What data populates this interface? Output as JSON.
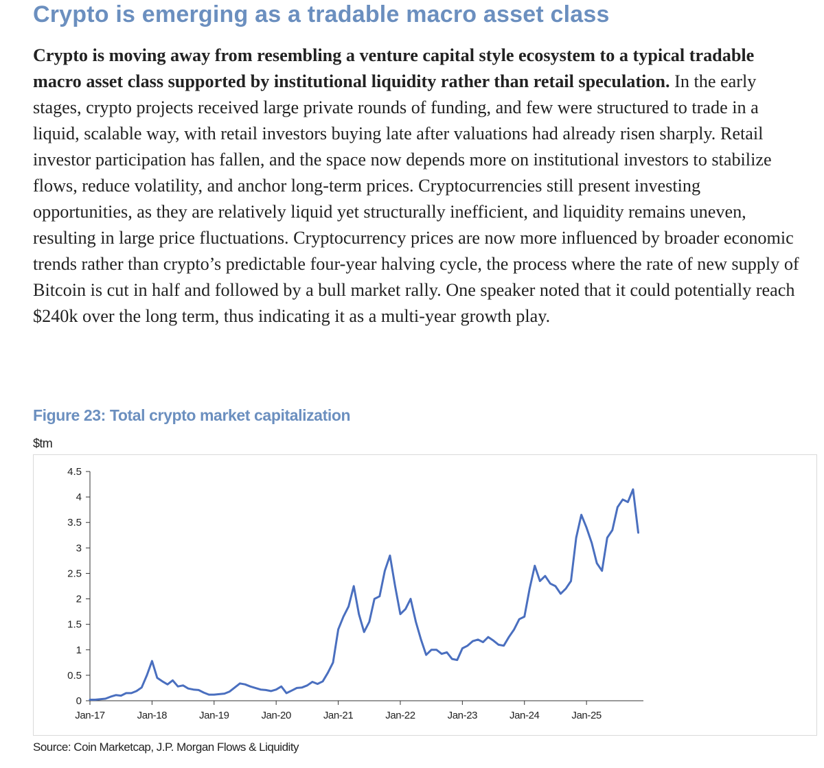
{
  "headline": "Crypto is emerging as a tradable macro asset class",
  "paragraph": {
    "lede": "Crypto is moving away from resembling a venture capital style ecosystem to a typical tradable macro asset class supported by institutional liquidity rather than retail speculation.",
    "body": " In the early stages, crypto projects received large private rounds of funding, and few were structured to trade in a liquid, scalable way, with retail investors buying late after valuations had already risen sharply. Retail investor participation has fallen, and the space now depends more on institutional investors to stabilize flows, reduce volatility, and anchor long-term prices. Cryptocurrencies still present investing opportunities, as they are relatively liquid yet structurally inefficient, and liquidity remains uneven, resulting in large price fluctuations. Cryptocurrency prices are now more influenced by broader economic trends rather than crypto’s predictable four-year halving cycle, the process where the rate of new supply of Bitcoin is cut in half and followed by a bull market rally. One speaker noted that it could potentially reach $240k over the long term, thus indicating it as a multi-year growth play."
  },
  "figure": {
    "title": "Figure 23: Total crypto market capitalization",
    "unit": "$tm",
    "source": "Source: Coin Marketcap, J.P. Morgan Flows & Liquidity"
  },
  "chart_data": {
    "type": "line",
    "title": "Figure 23: Total crypto market capitalization",
    "ylabel": "$tm",
    "xlabel": "",
    "ylim": [
      0,
      4.5
    ],
    "yticks": [
      0,
      0.5,
      1,
      1.5,
      2,
      2.5,
      3,
      3.5,
      4,
      4.5
    ],
    "ytick_labels": [
      "0",
      "0.5",
      "1",
      "1.5",
      "2",
      "2.5",
      "3",
      "3.5",
      "4",
      "4.5"
    ],
    "xlim": [
      "2017-01",
      "2025-12"
    ],
    "xtick_labels": [
      "Jan-17",
      "Jan-18",
      "Jan-19",
      "Jan-20",
      "Jan-21",
      "Jan-22",
      "Jan-23",
      "Jan-24",
      "Jan-25"
    ],
    "grid": false,
    "legend": "none",
    "line_color": "#4a6fbf",
    "series": [
      {
        "x": [
          "2017-01",
          "2017-02",
          "2017-03",
          "2017-04",
          "2017-05",
          "2017-06",
          "2017-07",
          "2017-08",
          "2017-09",
          "2017-10",
          "2017-11",
          "2017-12",
          "2018-01",
          "2018-02",
          "2018-03",
          "2018-04",
          "2018-05",
          "2018-06",
          "2018-07",
          "2018-08",
          "2018-09",
          "2018-10",
          "2018-11",
          "2018-12",
          "2019-01",
          "2019-02",
          "2019-03",
          "2019-04",
          "2019-05",
          "2019-06",
          "2019-07",
          "2019-08",
          "2019-09",
          "2019-10",
          "2019-11",
          "2019-12",
          "2020-01",
          "2020-02",
          "2020-03",
          "2020-04",
          "2020-05",
          "2020-06",
          "2020-07",
          "2020-08",
          "2020-09",
          "2020-10",
          "2020-11",
          "2020-12",
          "2021-01",
          "2021-02",
          "2021-03",
          "2021-04",
          "2021-05",
          "2021-06",
          "2021-07",
          "2021-08",
          "2021-09",
          "2021-10",
          "2021-11",
          "2021-12",
          "2022-01",
          "2022-02",
          "2022-03",
          "2022-04",
          "2022-05",
          "2022-06",
          "2022-07",
          "2022-08",
          "2022-09",
          "2022-10",
          "2022-11",
          "2022-12",
          "2023-01",
          "2023-02",
          "2023-03",
          "2023-04",
          "2023-05",
          "2023-06",
          "2023-07",
          "2023-08",
          "2023-09",
          "2023-10",
          "2023-11",
          "2023-12",
          "2024-01",
          "2024-02",
          "2024-03",
          "2024-04",
          "2024-05",
          "2024-06",
          "2024-07",
          "2024-08",
          "2024-09",
          "2024-10",
          "2024-11",
          "2024-12",
          "2025-01",
          "2025-02",
          "2025-03",
          "2025-04",
          "2025-05",
          "2025-06",
          "2025-07",
          "2025-08",
          "2025-09",
          "2025-10",
          "2025-11"
        ],
        "values": [
          0.02,
          0.02,
          0.03,
          0.04,
          0.08,
          0.11,
          0.1,
          0.15,
          0.15,
          0.19,
          0.26,
          0.5,
          0.78,
          0.45,
          0.38,
          0.32,
          0.4,
          0.28,
          0.3,
          0.24,
          0.22,
          0.21,
          0.16,
          0.12,
          0.12,
          0.13,
          0.14,
          0.18,
          0.26,
          0.34,
          0.32,
          0.28,
          0.25,
          0.22,
          0.21,
          0.19,
          0.22,
          0.28,
          0.15,
          0.2,
          0.25,
          0.26,
          0.3,
          0.37,
          0.33,
          0.38,
          0.55,
          0.75,
          1.4,
          1.65,
          1.85,
          2.25,
          1.7,
          1.35,
          1.55,
          2.0,
          2.05,
          2.55,
          2.85,
          2.25,
          1.7,
          1.8,
          2.0,
          1.55,
          1.2,
          0.9,
          1.0,
          1.0,
          0.92,
          0.95,
          0.82,
          0.8,
          1.03,
          1.08,
          1.17,
          1.2,
          1.15,
          1.25,
          1.18,
          1.1,
          1.08,
          1.25,
          1.4,
          1.6,
          1.65,
          2.2,
          2.65,
          2.35,
          2.45,
          2.3,
          2.25,
          2.1,
          2.2,
          2.35,
          3.2,
          3.65,
          3.4,
          3.1,
          2.7,
          2.55,
          3.2,
          3.35,
          3.8,
          3.95,
          3.9,
          4.15,
          3.3
        ]
      }
    ]
  }
}
